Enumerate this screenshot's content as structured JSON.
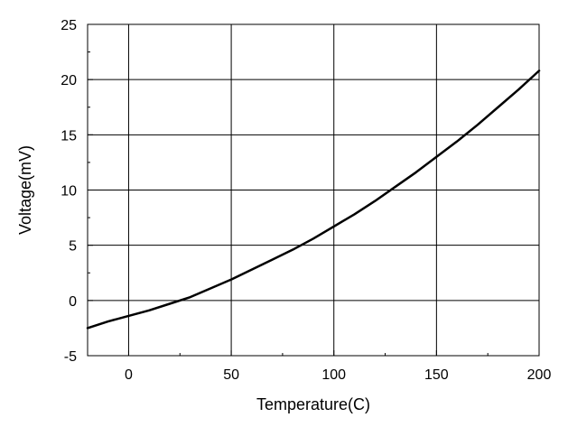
{
  "chart_data": {
    "type": "line",
    "title": "",
    "xlabel": "Temperature(C)",
    "ylabel": "Voltage(mV)",
    "xlim": [
      -20,
      200
    ],
    "ylim": [
      -5,
      25
    ],
    "x_ticks": [
      0,
      50,
      100,
      150,
      200
    ],
    "y_ticks": [
      -5,
      0,
      5,
      10,
      15,
      20,
      25
    ],
    "x_minor_step": 25,
    "y_minor_step": 2.5,
    "grid": true,
    "legend": "none",
    "series": [
      {
        "line_color": "#000000",
        "x": [
          -20,
          -10,
          0,
          10,
          20,
          30,
          40,
          50,
          60,
          70,
          80,
          90,
          100,
          110,
          120,
          130,
          140,
          150,
          160,
          170,
          180,
          190,
          200
        ],
        "y": [
          -2.5,
          -1.9,
          -1.4,
          -0.9,
          -0.3,
          0.3,
          1.1,
          1.9,
          2.8,
          3.7,
          4.6,
          5.6,
          6.7,
          7.8,
          9.0,
          10.3,
          11.6,
          13.0,
          14.4,
          15.9,
          17.5,
          19.1,
          20.8
        ]
      }
    ]
  }
}
